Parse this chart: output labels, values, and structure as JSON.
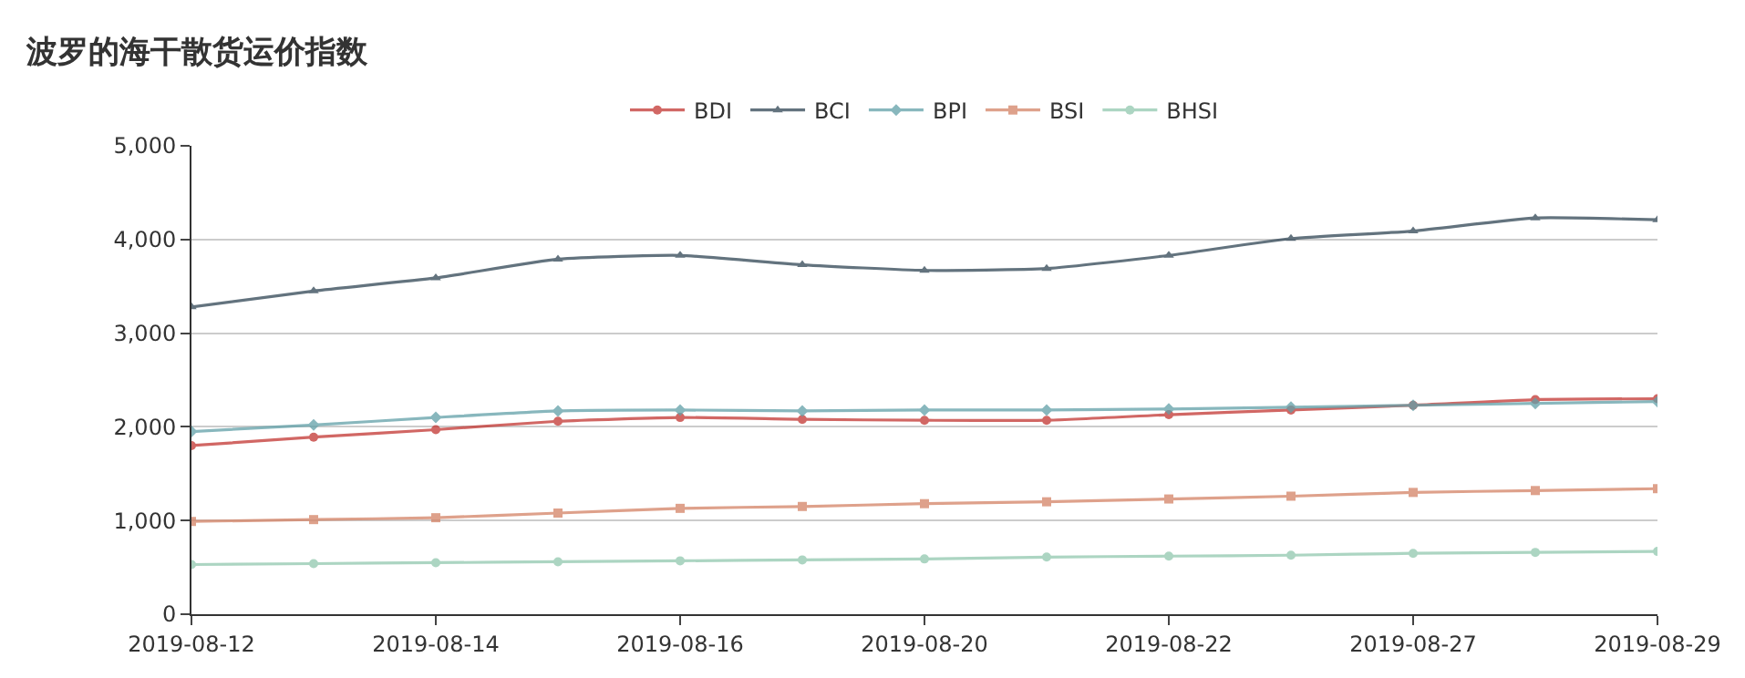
{
  "chart_data": {
    "type": "line",
    "title": "波罗的海干散货运价指数",
    "categories": [
      "2019-08-12",
      null,
      "2019-08-14",
      null,
      "2019-08-16",
      null,
      "2019-08-20",
      null,
      "2019-08-22",
      null,
      "2019-08-27",
      null,
      "2019-08-29"
    ],
    "series": [
      {
        "name": "BDI",
        "color": "#c23531",
        "marker": "circle",
        "values": [
          1800,
          1890,
          1970,
          2060,
          2100,
          2080,
          2070,
          2070,
          2130,
          2180,
          2230,
          2290,
          2300
        ]
      },
      {
        "name": "BCI",
        "color": "#2f4554",
        "marker": "triangle",
        "values": [
          3280,
          3450,
          3590,
          3790,
          3830,
          3730,
          3670,
          3690,
          3830,
          4010,
          4090,
          4230,
          4210
        ]
      },
      {
        "name": "BPI",
        "color": "#61a0a8",
        "marker": "diamond",
        "values": [
          1950,
          2020,
          2100,
          2170,
          2180,
          2170,
          2180,
          2180,
          2190,
          2210,
          2230,
          2250,
          2270
        ]
      },
      {
        "name": "BSI",
        "color": "#d48265",
        "marker": "square",
        "values": [
          990,
          1010,
          1030,
          1080,
          1130,
          1150,
          1180,
          1200,
          1230,
          1260,
          1300,
          1320,
          1340
        ]
      },
      {
        "name": "BHSI",
        "color": "#91c7ae",
        "marker": "circle",
        "values": [
          530,
          540,
          550,
          560,
          570,
          580,
          590,
          610,
          620,
          630,
          650,
          660,
          670
        ]
      }
    ],
    "ylim": [
      0,
      5000
    ],
    "yticks": [
      {
        "value": 0,
        "label": "0"
      },
      {
        "value": 1000,
        "label": "1,000"
      },
      {
        "value": 2000,
        "label": "2,000"
      },
      {
        "value": 3000,
        "label": "3,000"
      },
      {
        "value": 4000,
        "label": "4,000"
      },
      {
        "value": 5000,
        "label": "5,000"
      }
    ],
    "grid": "y",
    "legend": "top",
    "line_style": "solid"
  }
}
